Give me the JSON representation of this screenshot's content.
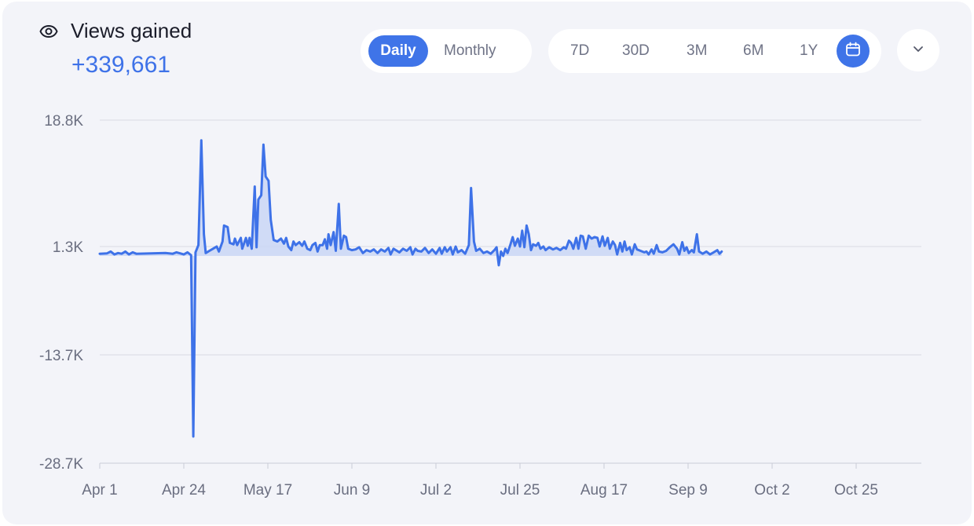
{
  "header": {
    "icon": "eye-icon",
    "title": "Views gained",
    "total": "+339,661"
  },
  "mode_toggle": {
    "daily": "Daily",
    "monthly": "Monthly",
    "selected": "Daily"
  },
  "range_buttons": [
    "7D",
    "30D",
    "3M",
    "6M",
    "1Y"
  ],
  "calendar_icon": "calendar-icon",
  "dropdown_icon": "chevron-down-icon",
  "colors": {
    "accent": "#3f74e8",
    "line": "#3e72e8",
    "fill": "#c9d6f6",
    "background": "#f3f4f9"
  },
  "chart_data": {
    "type": "area",
    "x_axis_labels": [
      "Apr 1",
      "Apr 24",
      "May 17",
      "Jun 9",
      "Jul 2",
      "Jul 25",
      "Aug 17",
      "Sep 9",
      "Oct 2",
      "Oct 25"
    ],
    "y_axis_labels": [
      "18.8K",
      "1.3K",
      "-13.7K",
      "-28.7K"
    ],
    "y_ticks": [
      18.8,
      1.3,
      -13.7,
      -28.7
    ],
    "ylim": [
      -28.7,
      18.8
    ],
    "grid": true,
    "series": [
      {
        "values": [
          [
            0,
            0.3
          ],
          [
            2,
            0.35
          ],
          [
            3,
            0.6
          ],
          [
            4,
            0.2
          ],
          [
            5,
            0.4
          ],
          [
            6,
            0.3
          ],
          [
            7,
            0.6
          ],
          [
            8,
            0.2
          ],
          [
            9,
            0.5
          ],
          [
            10,
            0.3
          ],
          [
            14,
            0.35
          ],
          [
            18,
            0.4
          ],
          [
            20,
            0.3
          ],
          [
            21,
            0.5
          ],
          [
            22,
            0.35
          ],
          [
            23,
            0.2
          ],
          [
            24,
            0.5
          ],
          [
            25,
            0.1
          ],
          [
            25.6,
            -25.0
          ],
          [
            26.2,
            0.5
          ],
          [
            27,
            1.5
          ],
          [
            27.8,
            16.0
          ],
          [
            28.5,
            3.0
          ],
          [
            29,
            0.4
          ],
          [
            30,
            0.7
          ],
          [
            31,
            1.0
          ],
          [
            32,
            1.3
          ],
          [
            32.6,
            0.6
          ],
          [
            33.6,
            2.0
          ],
          [
            34,
            4.2
          ],
          [
            35,
            4.0
          ],
          [
            35.6,
            1.8
          ],
          [
            36.6,
            1.6
          ],
          [
            37,
            2.4
          ],
          [
            37.6,
            1.5
          ],
          [
            38.6,
            2.5
          ],
          [
            39,
            1.0
          ],
          [
            40,
            2.5
          ],
          [
            40.5,
            1.4
          ],
          [
            41,
            2.5
          ],
          [
            41.6,
            1.0
          ],
          [
            42.4,
            9.6
          ],
          [
            42.9,
            1.2
          ],
          [
            43.4,
            7.8
          ],
          [
            44.2,
            8.4
          ],
          [
            44.8,
            15.4
          ],
          [
            45.4,
            11.0
          ],
          [
            46.2,
            10.4
          ],
          [
            46.8,
            5.0
          ],
          [
            47.6,
            2.2
          ],
          [
            48.6,
            2.0
          ],
          [
            49.6,
            2.4
          ],
          [
            50.4,
            1.7
          ],
          [
            51,
            2.5
          ],
          [
            51.6,
            1.3
          ],
          [
            52.4,
            0.8
          ],
          [
            53,
            2.0
          ],
          [
            53.6,
            1.5
          ],
          [
            54.6,
            1.9
          ],
          [
            55.4,
            1.4
          ],
          [
            56,
            2.0
          ],
          [
            56.8,
            1.0
          ],
          [
            57.6,
            0.8
          ],
          [
            58.2,
            1.5
          ],
          [
            59,
            1.8
          ],
          [
            59.6,
            0.6
          ],
          [
            60.2,
            1.5
          ],
          [
            61,
            1.5
          ],
          [
            61.6,
            2.3
          ],
          [
            62.2,
            1.0
          ],
          [
            62.6,
            3.0
          ],
          [
            63.2,
            1.5
          ],
          [
            64,
            3.3
          ],
          [
            64.6,
            0.7
          ],
          [
            65.4,
            7.2
          ],
          [
            66,
            1.0
          ],
          [
            66.8,
            2.8
          ],
          [
            67.4,
            2.6
          ],
          [
            68,
            1.0
          ],
          [
            69,
            0.8
          ],
          [
            70,
            0.9
          ],
          [
            71,
            1.2
          ],
          [
            72,
            0.4
          ],
          [
            73,
            0.8
          ],
          [
            74,
            0.6
          ],
          [
            75,
            0.9
          ],
          [
            76,
            0.4
          ],
          [
            77,
            0.9
          ],
          [
            78,
            0.6
          ],
          [
            79,
            1.1
          ],
          [
            79.6,
            0.2
          ],
          [
            80.4,
            1.0
          ],
          [
            81,
            0.8
          ],
          [
            82,
            0.5
          ],
          [
            83,
            1.0
          ],
          [
            84,
            0.7
          ],
          [
            85,
            1.2
          ],
          [
            85.6,
            0.2
          ],
          [
            86.4,
            1.0
          ],
          [
            87,
            0.7
          ],
          [
            88,
            0.6
          ],
          [
            89,
            1.1
          ],
          [
            90,
            0.4
          ],
          [
            91,
            0.9
          ],
          [
            92,
            0.3
          ],
          [
            93,
            1.1
          ],
          [
            93.6,
            0.3
          ],
          [
            94.4,
            1.2
          ],
          [
            95,
            0.6
          ],
          [
            96,
            1.2
          ],
          [
            96.6,
            0.2
          ],
          [
            97.4,
            1.3
          ],
          [
            98,
            0.5
          ],
          [
            99,
            0.8
          ],
          [
            100,
            0.3
          ],
          [
            101,
            1.5
          ],
          [
            101.6,
            9.4
          ],
          [
            102.4,
            2.0
          ],
          [
            103,
            0.7
          ],
          [
            104,
            1.0
          ],
          [
            105,
            0.4
          ],
          [
            106,
            0.6
          ],
          [
            107,
            0.3
          ],
          [
            108,
            0.8
          ],
          [
            108.6,
            1.2
          ],
          [
            109.2,
            -1.3
          ],
          [
            109.8,
            0.6
          ],
          [
            110.4,
            0.0
          ],
          [
            111,
            1.0
          ],
          [
            111.6,
            0.4
          ],
          [
            112.4,
            1.6
          ],
          [
            113,
            2.6
          ],
          [
            113.6,
            1.4
          ],
          [
            114.4,
            2.4
          ],
          [
            115,
            1.3
          ],
          [
            115.6,
            3.5
          ],
          [
            116.2,
            1.2
          ],
          [
            116.8,
            4.2
          ],
          [
            117.4,
            3.0
          ],
          [
            118,
            0.8
          ],
          [
            118.6,
            1.6
          ],
          [
            119.4,
            1.4
          ],
          [
            120,
            1.8
          ],
          [
            120.6,
            1.0
          ],
          [
            121.4,
            1.3
          ],
          [
            122,
            0.8
          ],
          [
            123,
            1.2
          ],
          [
            124,
            0.9
          ],
          [
            125,
            1.1
          ],
          [
            126,
            0.8
          ],
          [
            127,
            1.2
          ],
          [
            127.6,
            1.0
          ],
          [
            128.4,
            2.1
          ],
          [
            129,
            1.8
          ],
          [
            129.6,
            1.0
          ],
          [
            130.4,
            2.5
          ],
          [
            131,
            1.0
          ],
          [
            131.6,
            2.8
          ],
          [
            132.2,
            2.7
          ],
          [
            133,
            1.0
          ],
          [
            133.8,
            2.8
          ],
          [
            134.6,
            2.4
          ],
          [
            135.4,
            2.6
          ],
          [
            136.2,
            2.5
          ],
          [
            136.8,
            1.3
          ],
          [
            137.6,
            2.7
          ],
          [
            138.2,
            1.4
          ],
          [
            139,
            2.5
          ],
          [
            139.6,
            1.0
          ],
          [
            140.4,
            2.0
          ],
          [
            141,
            1.5
          ],
          [
            141.6,
            0.2
          ],
          [
            142.4,
            1.8
          ],
          [
            143,
            0.6
          ],
          [
            143.6,
            2.0
          ],
          [
            144.2,
            0.8
          ],
          [
            145,
            1.2
          ],
          [
            145.6,
            0.2
          ],
          [
            146.4,
            1.6
          ],
          [
            147,
            0.9
          ],
          [
            148,
            0.7
          ],
          [
            149,
            0.5
          ],
          [
            149.6,
            0.6
          ],
          [
            150.2,
            0.2
          ],
          [
            151,
            0.9
          ],
          [
            151.6,
            0.3
          ],
          [
            152.4,
            1.5
          ],
          [
            153,
            0.6
          ],
          [
            154,
            0.5
          ],
          [
            155,
            0.7
          ],
          [
            156,
            1.2
          ],
          [
            157,
            1.6
          ],
          [
            158,
            1.0
          ],
          [
            158.6,
            0.2
          ],
          [
            159.4,
            1.9
          ],
          [
            160,
            0.7
          ],
          [
            160.6,
            1.2
          ],
          [
            161.2,
            0.4
          ],
          [
            162,
            0.8
          ],
          [
            162.6,
            0.5
          ],
          [
            163.4,
            3.0
          ],
          [
            164,
            0.6
          ],
          [
            165,
            0.3
          ],
          [
            166,
            0.6
          ],
          [
            167,
            0.2
          ],
          [
            168,
            0.5
          ],
          [
            169,
            0.8
          ],
          [
            169.6,
            0.3
          ],
          [
            170.2,
            0.6
          ]
        ]
      }
    ]
  }
}
